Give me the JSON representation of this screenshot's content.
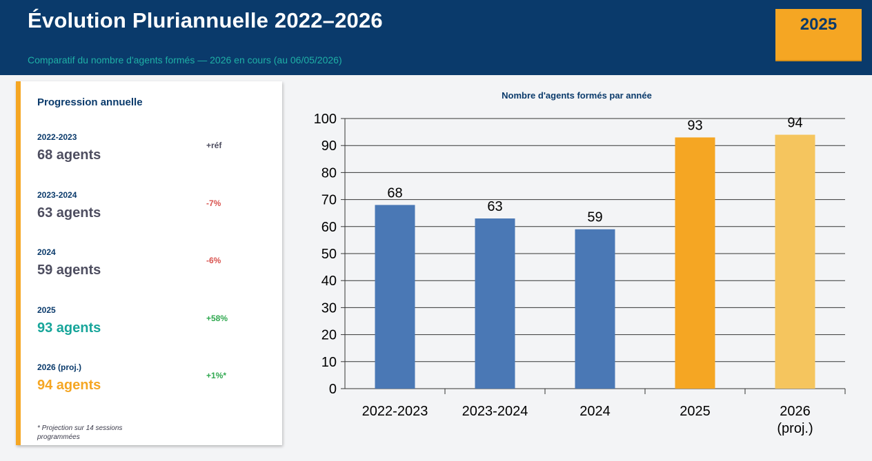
{
  "header": {
    "title": "Évolution Pluriannuelle 2022–2026",
    "subtitle": "Comparatif du nombre d'agents formés — 2026 en cours (au 06/05/2026)",
    "year_badge": "2025"
  },
  "panel": {
    "title": "Progression annuelle",
    "rows": [
      {
        "label": "2022-2023",
        "value": "68 agents",
        "delta": "+réf",
        "value_color": "#4d4d5f",
        "delta_color": "#4d4d5f"
      },
      {
        "label": "2023-2024",
        "value": "63 agents",
        "delta": "-7%",
        "value_color": "#4d4d5f",
        "delta_color": "#d9534f"
      },
      {
        "label": "2024",
        "value": "59 agents",
        "delta": "-6%",
        "value_color": "#4d4d5f",
        "delta_color": "#d9534f"
      },
      {
        "label": "2025",
        "value": "93 agents",
        "delta": "+58%",
        "value_color": "#17a59a",
        "delta_color": "#2fa84f"
      },
      {
        "label": "2026 (proj.)",
        "value": "94 agents",
        "delta": "+1%*",
        "value_color": "#f5a623",
        "delta_color": "#2fa84f"
      }
    ],
    "footnote": "* Projection sur 14 sessions programmées"
  },
  "colors": {
    "header_bg": "#0a3a6b",
    "accent_orange": "#f5a623",
    "bar_blue": "#4a78b5",
    "bar_orange": "#f5a623",
    "bar_light_orange": "#f5c55e"
  },
  "chart_data": {
    "type": "bar",
    "title": "Nombre d'agents formés par année",
    "categories": [
      "2022-2023",
      "2023-2024",
      "2024",
      "2025",
      "2026\n(proj.)"
    ],
    "values": [
      68,
      63,
      59,
      93,
      94
    ],
    "bar_colors": [
      "#4a78b5",
      "#4a78b5",
      "#4a78b5",
      "#f5a623",
      "#f5c55e"
    ],
    "ylim": [
      0,
      100
    ],
    "yticks": [
      0,
      10,
      20,
      30,
      40,
      50,
      60,
      70,
      80,
      90,
      100
    ],
    "grid": true,
    "xlabel": "",
    "ylabel": ""
  }
}
